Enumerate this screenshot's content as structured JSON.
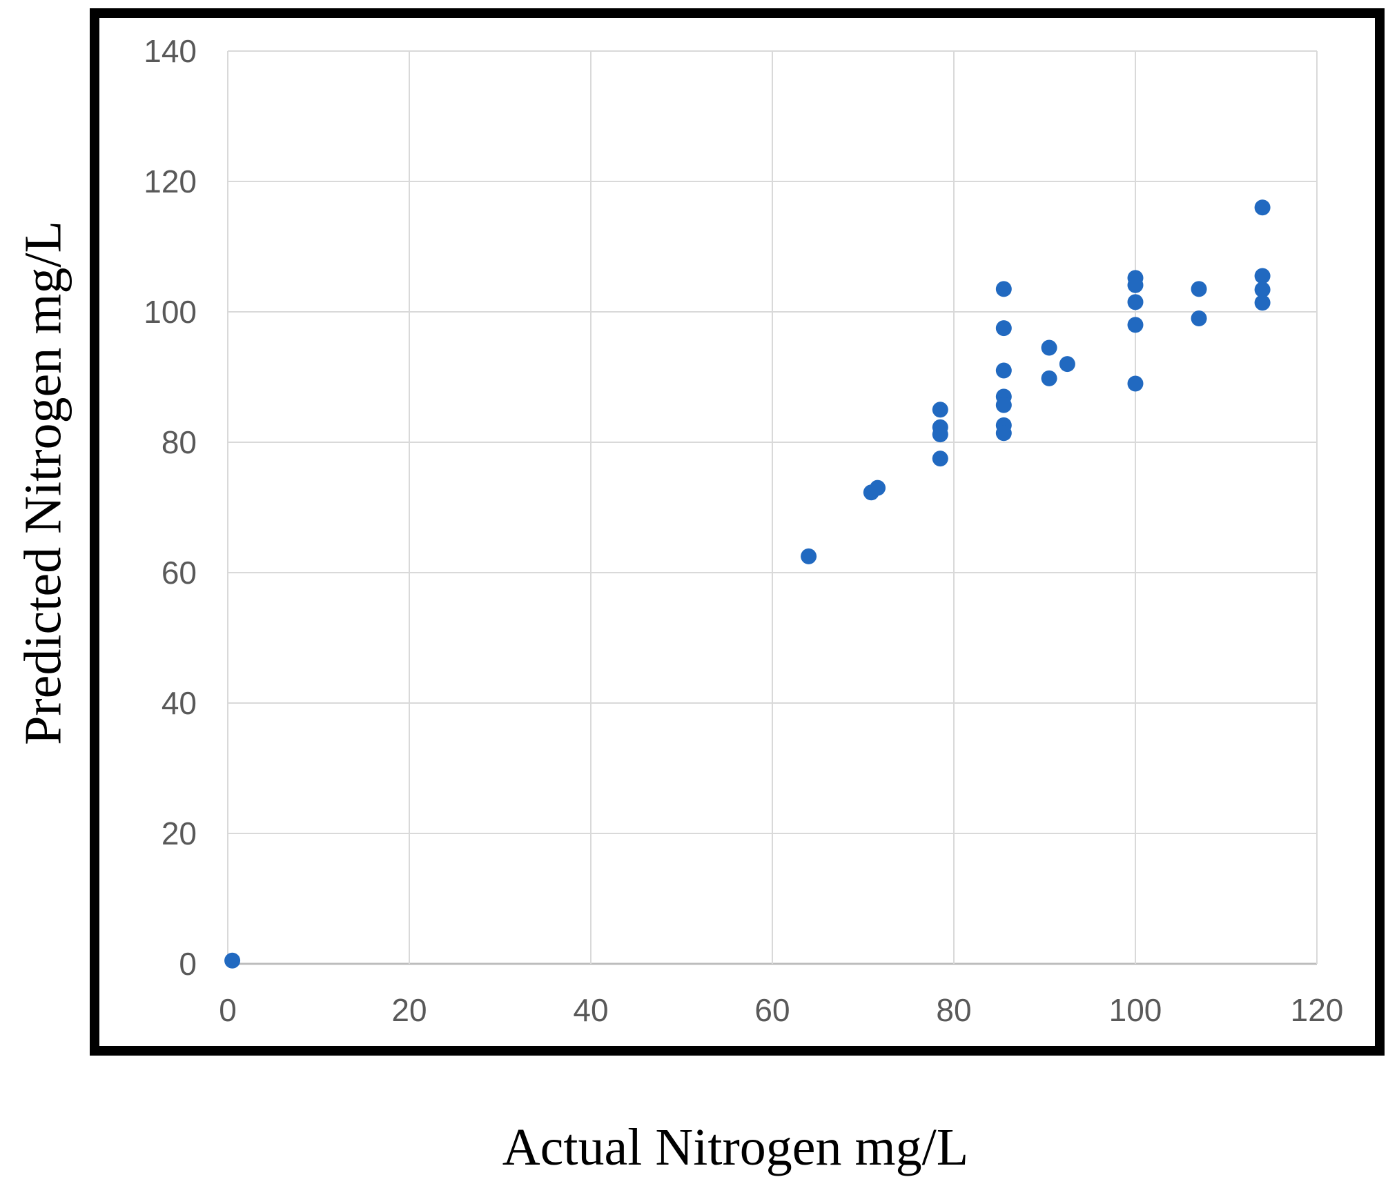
{
  "chart_data": {
    "type": "scatter",
    "title": "",
    "xlabel": "Actual Nitrogen mg/L",
    "ylabel": "Predicted Nitrogen mg/L",
    "xlim": [
      0,
      120
    ],
    "ylim": [
      0,
      140
    ],
    "x_ticks": [
      0,
      20,
      40,
      60,
      80,
      100,
      120
    ],
    "y_ticks": [
      0,
      20,
      40,
      60,
      80,
      100,
      120,
      140
    ],
    "grid": true,
    "legend": "none",
    "marker_color": "#2169C0",
    "gridline_color": "#D9D9D9",
    "axis_line_color": "#BDBDBD",
    "tick_label_color": "#595959",
    "frame_color": "#000000",
    "points": [
      {
        "x": 0.5,
        "y": 0.5
      },
      {
        "x": 64,
        "y": 62.5
      },
      {
        "x": 70.9,
        "y": 72.3
      },
      {
        "x": 71.6,
        "y": 73.0
      },
      {
        "x": 78.5,
        "y": 85.0
      },
      {
        "x": 78.5,
        "y": 82.3
      },
      {
        "x": 78.5,
        "y": 81.2
      },
      {
        "x": 78.5,
        "y": 77.5
      },
      {
        "x": 85.5,
        "y": 103.5
      },
      {
        "x": 85.5,
        "y": 97.5
      },
      {
        "x": 85.5,
        "y": 91.0
      },
      {
        "x": 85.5,
        "y": 87.0
      },
      {
        "x": 85.5,
        "y": 85.7
      },
      {
        "x": 85.5,
        "y": 82.6
      },
      {
        "x": 85.5,
        "y": 81.4
      },
      {
        "x": 90.5,
        "y": 94.5
      },
      {
        "x": 92.5,
        "y": 92.0
      },
      {
        "x": 90.5,
        "y": 89.8
      },
      {
        "x": 100,
        "y": 105.2
      },
      {
        "x": 100,
        "y": 104.1
      },
      {
        "x": 100,
        "y": 101.5
      },
      {
        "x": 100,
        "y": 98.0
      },
      {
        "x": 100,
        "y": 89.0
      },
      {
        "x": 107,
        "y": 103.5
      },
      {
        "x": 107,
        "y": 99.0
      },
      {
        "x": 114,
        "y": 116.0
      },
      {
        "x": 114,
        "y": 105.5
      },
      {
        "x": 114,
        "y": 103.4
      },
      {
        "x": 114,
        "y": 101.4
      }
    ]
  }
}
